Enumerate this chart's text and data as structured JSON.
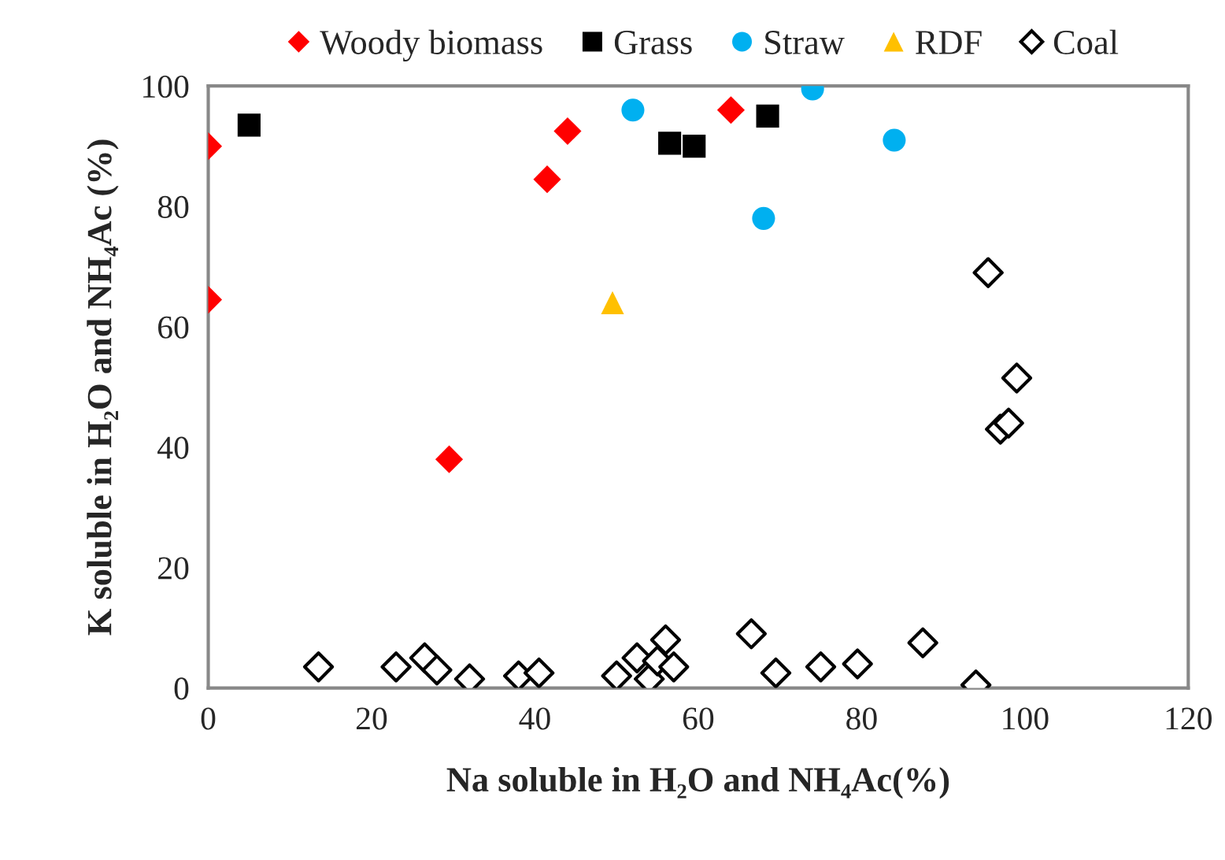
{
  "chart_data": {
    "type": "scatter",
    "xlabel": "Na soluble in H₂O and NH₄Ac(%)",
    "ylabel": "K soluble in H₂O and NH₄Ac (%)",
    "xlim": [
      0,
      120
    ],
    "xticks": [
      0,
      20,
      40,
      60,
      80,
      100,
      120
    ],
    "ylim": [
      0,
      100
    ],
    "yticks": [
      0,
      20,
      40,
      60,
      80,
      100
    ],
    "grid": false,
    "legend": "top",
    "series": [
      {
        "name": "Woody biomass",
        "color": "#ff0000",
        "marker": "diamond",
        "x": [
          0,
          0,
          29.5,
          41.5,
          44,
          64
        ],
        "values": [
          90,
          64.5,
          38,
          84.5,
          92.5,
          96
        ]
      },
      {
        "name": "Grass",
        "color": "#000000",
        "marker": "square",
        "x": [
          5,
          56.5,
          59.5,
          68.5
        ],
        "values": [
          93.5,
          90.5,
          90,
          95
        ]
      },
      {
        "name": "Straw",
        "color": "#00b0f0",
        "marker": "circle",
        "x": [
          52,
          68,
          74,
          84
        ],
        "values": [
          96,
          78,
          99.5,
          91
        ]
      },
      {
        "name": "RDF",
        "color": "#ffc000",
        "marker": "triangle",
        "x": [
          49.5
        ],
        "values": [
          64
        ]
      },
      {
        "name": "Coal",
        "color": "#000000",
        "marker": "diamond",
        "x": [
          13.5,
          23,
          26.5,
          28,
          32,
          38,
          40.5,
          50,
          52.5,
          54,
          55,
          56,
          57,
          66.5,
          69.5,
          75,
          79.5,
          87.5,
          94,
          95.5,
          97,
          98,
          99
        ],
        "values": [
          3.5,
          3.5,
          5,
          3,
          1.5,
          2,
          2.5,
          2,
          5,
          1.5,
          4.5,
          8,
          3.5,
          9,
          2.5,
          3.5,
          4,
          7.5,
          0.5,
          69,
          43,
          44,
          51.5
        ]
      }
    ]
  }
}
